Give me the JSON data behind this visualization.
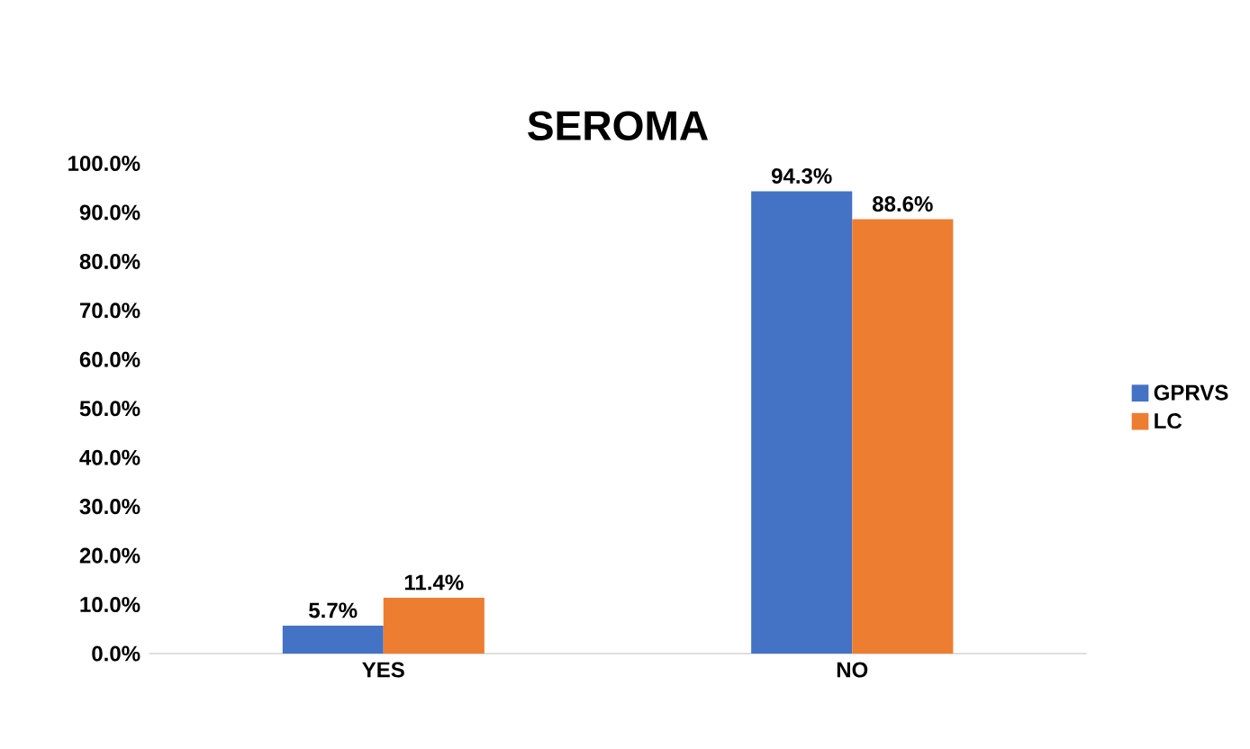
{
  "chart_data": {
    "type": "bar",
    "title": "SEROMA",
    "categories": [
      "YES",
      "NO"
    ],
    "series": [
      {
        "name": "GPRVS",
        "color": "#4472c4",
        "values": [
          5.7,
          94.3
        ],
        "value_labels": [
          "5.7%",
          "94.3%"
        ]
      },
      {
        "name": "LC",
        "color": "#ed7d31",
        "values": [
          11.4,
          88.6
        ],
        "value_labels": [
          "11.4%",
          "88.6%"
        ]
      }
    ],
    "ylim": [
      0,
      100
    ],
    "yticks": [
      {
        "value": 0,
        "label": "0.0%"
      },
      {
        "value": 10,
        "label": "10.0%"
      },
      {
        "value": 20,
        "label": "20.0%"
      },
      {
        "value": 30,
        "label": "30.0%"
      },
      {
        "value": 40,
        "label": "40.0%"
      },
      {
        "value": 50,
        "label": "50.0%"
      },
      {
        "value": 60,
        "label": "60.0%"
      },
      {
        "value": 70,
        "label": "70.0%"
      },
      {
        "value": 80,
        "label": "80.0%"
      },
      {
        "value": 90,
        "label": "90.0%"
      },
      {
        "value": 100,
        "label": "100.0%"
      }
    ],
    "legend": "right"
  }
}
